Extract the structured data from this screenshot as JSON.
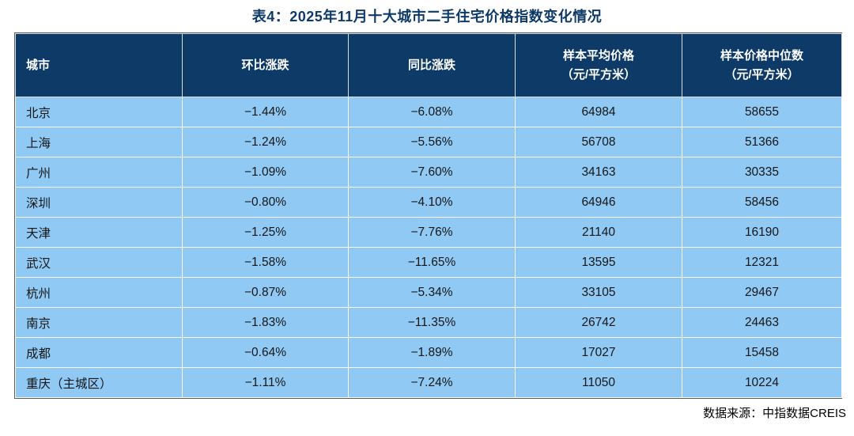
{
  "title": "表4：2025年11月十大城市二手住宅价格指数变化情况",
  "chart_data": {
    "type": "table",
    "title": "表4：2025年11月十大城市二手住宅价格指数变化情况",
    "columns": [
      {
        "label": "城市",
        "sub": ""
      },
      {
        "label": "环比涨跌",
        "sub": ""
      },
      {
        "label": "同比涨跌",
        "sub": ""
      },
      {
        "label": "样本平均价格",
        "sub": "（元/平方米）"
      },
      {
        "label": "样本价格中位数",
        "sub": "（元/平方米）"
      }
    ],
    "rows": [
      [
        "北京",
        "−1.44%",
        "−6.08%",
        "64984",
        "58655"
      ],
      [
        "上海",
        "−1.24%",
        "−5.56%",
        "56708",
        "51366"
      ],
      [
        "广州",
        "−1.09%",
        "−7.60%",
        "34163",
        "30335"
      ],
      [
        "深圳",
        "−0.80%",
        "−4.10%",
        "64946",
        "58456"
      ],
      [
        "天津",
        "−1.25%",
        "−7.76%",
        "21140",
        "16190"
      ],
      [
        "武汉",
        "−1.58%",
        "−11.65%",
        "13595",
        "12321"
      ],
      [
        "杭州",
        "−0.87%",
        "−5.34%",
        "33105",
        "29467"
      ],
      [
        "南京",
        "−1.83%",
        "−11.35%",
        "26742",
        "24463"
      ],
      [
        "成都",
        "−0.64%",
        "−1.89%",
        "17027",
        "15458"
      ],
      [
        "重庆（主城区）",
        "−1.11%",
        "−7.24%",
        "11050",
        "10224"
      ]
    ]
  },
  "footer": {
    "source_label": "数据来源：中指数据CREIS"
  },
  "colors": {
    "header_bg": "#0e3a68",
    "row_bg": "#90c9f4",
    "title_color": "#0e3a68",
    "header_text": "#ffffff",
    "cell_text": "#161616",
    "outer_border": "#595959"
  }
}
